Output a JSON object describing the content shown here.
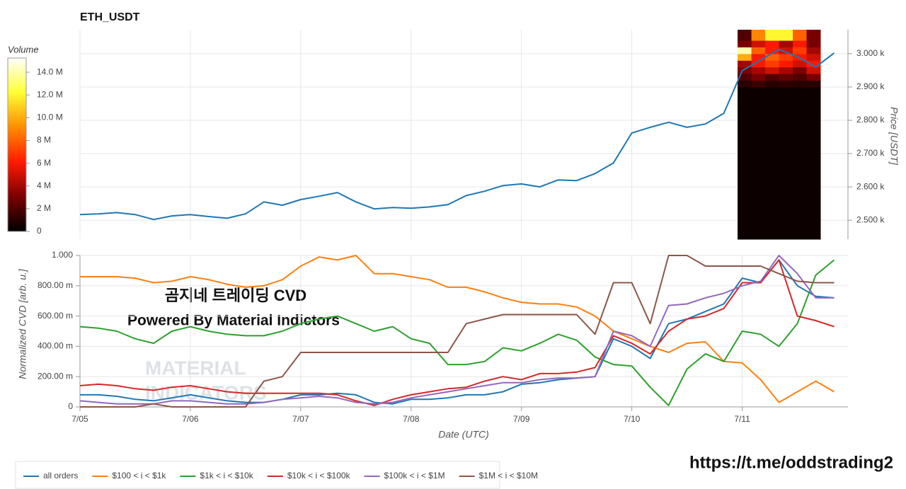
{
  "chart_data": [
    {
      "type": "line",
      "title": "ETH_USDT",
      "y_label": "Price [USDT]",
      "x": [
        0,
        4,
        8,
        12,
        16,
        20,
        24,
        28,
        32,
        36,
        40,
        44,
        48,
        52,
        56,
        60,
        64,
        68,
        72,
        76,
        80,
        84,
        88,
        92,
        96,
        100,
        104,
        108,
        112,
        116,
        120,
        124,
        128,
        132,
        136,
        140,
        144,
        148,
        152,
        156,
        160,
        164
      ],
      "series": [
        {
          "color": "#1f77b4",
          "values": [
            2517,
            2519,
            2523,
            2517,
            2502,
            2513,
            2517,
            2511,
            2506,
            2519,
            2555,
            2545,
            2562,
            2572,
            2583,
            2555,
            2534,
            2538,
            2536,
            2540,
            2547,
            2574,
            2587,
            2604,
            2609,
            2600,
            2621,
            2619,
            2640,
            2672,
            2762,
            2779,
            2794,
            2779,
            2789,
            2821,
            2949,
            2981,
            3013,
            2991,
            2960,
            3002
          ]
        }
      ],
      "xlim": [
        0,
        167
      ],
      "ylim": [
        2443,
        3072
      ],
      "yticks": [
        {
          "value": 2500,
          "label": "2.500 k"
        },
        {
          "value": 2600,
          "label": "2.600 k"
        },
        {
          "value": 2700,
          "label": "2.700 k"
        },
        {
          "value": 2800,
          "label": "2.800 k"
        },
        {
          "value": 2900,
          "label": "2.900 k"
        },
        {
          "value": 3000,
          "label": "3.000 k"
        }
      ],
      "grid": true,
      "heatmap": {
        "x_bins": [
          143,
          146,
          149,
          152,
          155,
          158,
          161
        ],
        "price_bins": [
          2443,
          2900,
          2920,
          2940,
          2960,
          2980,
          3000,
          3020,
          3040,
          3072
        ],
        "values": [
          [
            0.3,
            0.3,
            0.3,
            0.3,
            0.3,
            0.3
          ],
          [
            1,
            1.5,
            1,
            1.2,
            1,
            1
          ],
          [
            2,
            3,
            2,
            2.5,
            2,
            3
          ],
          [
            3,
            4,
            5,
            4,
            3,
            5
          ],
          [
            4,
            6,
            7,
            6,
            5,
            6
          ],
          [
            10,
            6,
            8,
            7,
            6,
            5
          ],
          [
            14,
            8,
            6,
            5,
            7,
            4
          ],
          [
            3,
            5,
            6,
            4,
            6,
            3
          ],
          [
            2,
            9,
            12,
            12,
            8,
            3
          ]
        ]
      },
      "colorbar": {
        "title": "Volume",
        "clim": [
          0,
          15.25
        ],
        "colors": [
          "#000000",
          "#7a0000",
          "#ff1a00",
          "#ff8c00",
          "#ffff33",
          "#ffffff"
        ],
        "ticks": [
          0,
          {
            "value": 2,
            "label": "2 M"
          },
          {
            "value": 4,
            "label": "4 M"
          },
          {
            "value": 6,
            "label": "6 M"
          },
          {
            "value": 8,
            "label": "8 M"
          },
          {
            "value": 10,
            "label": "10.0 M"
          },
          {
            "value": 12,
            "label": "12.0 M"
          },
          {
            "value": 14,
            "label": "14.0 M"
          }
        ]
      }
    },
    {
      "type": "line",
      "y_label": "Normalized CVD [arb. u.]",
      "x_label": "Date (UTC)",
      "x": [
        0,
        4,
        8,
        12,
        16,
        20,
        24,
        28,
        32,
        36,
        40,
        44,
        48,
        52,
        56,
        60,
        64,
        68,
        72,
        76,
        80,
        84,
        88,
        92,
        96,
        100,
        104,
        108,
        112,
        116,
        120,
        124,
        128,
        132,
        136,
        140,
        144,
        148,
        152,
        156,
        160,
        164
      ],
      "series": [
        {
          "name": "all orders",
          "color": "#1f77b4",
          "values": [
            0.08,
            0.08,
            0.07,
            0.05,
            0.04,
            0.06,
            0.08,
            0.06,
            0.04,
            0.03,
            0.03,
            0.05,
            0.08,
            0.08,
            0.09,
            0.08,
            0.03,
            0.02,
            0.05,
            0.05,
            0.06,
            0.08,
            0.08,
            0.1,
            0.15,
            0.16,
            0.18,
            0.19,
            0.2,
            0.45,
            0.4,
            0.32,
            0.55,
            0.58,
            0.63,
            0.68,
            0.85,
            0.82,
            0.97,
            0.8,
            0.73,
            0.72
          ]
        },
        {
          "name": "$100 < i < $1k",
          "color": "#ff7f0e",
          "values": [
            0.86,
            0.86,
            0.86,
            0.85,
            0.82,
            0.83,
            0.86,
            0.84,
            0.81,
            0.79,
            0.8,
            0.84,
            0.93,
            0.99,
            0.97,
            1.0,
            0.88,
            0.88,
            0.86,
            0.84,
            0.79,
            0.79,
            0.76,
            0.72,
            0.69,
            0.68,
            0.68,
            0.66,
            0.6,
            0.5,
            0.45,
            0.4,
            0.36,
            0.42,
            0.43,
            0.3,
            0.29,
            0.18,
            0.03,
            0.1,
            0.17,
            0.1
          ]
        },
        {
          "name": "$1k < i < $10k",
          "color": "#2ca02c",
          "values": [
            0.53,
            0.52,
            0.5,
            0.45,
            0.42,
            0.5,
            0.53,
            0.5,
            0.48,
            0.47,
            0.47,
            0.5,
            0.55,
            0.58,
            0.6,
            0.55,
            0.5,
            0.53,
            0.45,
            0.42,
            0.28,
            0.28,
            0.3,
            0.39,
            0.37,
            0.42,
            0.48,
            0.44,
            0.33,
            0.28,
            0.27,
            0.13,
            0.01,
            0.25,
            0.35,
            0.3,
            0.5,
            0.48,
            0.4,
            0.55,
            0.87,
            0.97
          ]
        },
        {
          "name": "$10k < i < $100k",
          "color": "#d62728",
          "values": [
            0.14,
            0.15,
            0.14,
            0.12,
            0.11,
            0.13,
            0.14,
            0.12,
            0.1,
            0.09,
            0.09,
            0.09,
            0.09,
            0.09,
            0.08,
            0.04,
            0.01,
            0.05,
            0.08,
            0.1,
            0.12,
            0.13,
            0.17,
            0.2,
            0.18,
            0.22,
            0.22,
            0.23,
            0.26,
            0.47,
            0.42,
            0.35,
            0.5,
            0.58,
            0.6,
            0.65,
            0.82,
            0.82,
            0.97,
            0.6,
            0.57,
            0.53
          ]
        },
        {
          "name": "$100k < i < $1M",
          "color": "#9467bd",
          "values": [
            0.04,
            0.03,
            0.02,
            0.02,
            0.02,
            0.04,
            0.04,
            0.03,
            0.02,
            0.02,
            0.03,
            0.05,
            0.06,
            0.07,
            0.06,
            0.03,
            0.02,
            0.03,
            0.06,
            0.08,
            0.1,
            0.12,
            0.14,
            0.16,
            0.16,
            0.18,
            0.19,
            0.19,
            0.2,
            0.5,
            0.47,
            0.4,
            0.67,
            0.68,
            0.72,
            0.75,
            0.8,
            0.83,
            1.0,
            0.88,
            0.72,
            0.72
          ]
        },
        {
          "name": "$1M < i < $10M",
          "color": "#8c564b",
          "values": [
            0,
            0,
            0,
            0,
            0.02,
            0,
            0,
            0,
            0,
            0,
            0.17,
            0.2,
            0.36,
            0.36,
            0.36,
            0.36,
            0.36,
            0.36,
            0.36,
            0.36,
            0.36,
            0.55,
            0.58,
            0.61,
            0.61,
            0.61,
            0.61,
            0.61,
            0.48,
            0.82,
            0.82,
            0.55,
            1,
            1,
            0.93,
            0.93,
            0.93,
            0.93,
            0.88,
            0.83,
            0.82,
            0.82
          ]
        }
      ],
      "xlim": [
        0,
        167
      ],
      "xticks": [
        {
          "value": 0,
          "label": "7/05"
        },
        {
          "value": 24,
          "label": "7/06"
        },
        {
          "value": 48,
          "label": "7/07"
        },
        {
          "value": 72,
          "label": "7/08"
        },
        {
          "value": 96,
          "label": "7/09"
        },
        {
          "value": 120,
          "label": "7/10"
        },
        {
          "value": 144,
          "label": "7/11"
        }
      ],
      "ylim": [
        0,
        1
      ],
      "yticks": [
        0,
        {
          "value": 0.2,
          "label": "200.00 m"
        },
        {
          "value": 0.4,
          "label": "400.00 m"
        },
        {
          "value": 0.6,
          "label": "600.00 m"
        },
        {
          "value": 0.8,
          "label": "800.00 m"
        },
        {
          "value": 1,
          "label": "1.000"
        }
      ],
      "grid": true,
      "legend": "bottom-left",
      "annotations": [
        "곰지네 트레이딩 CVD",
        "Powered By Material Indictors"
      ],
      "watermark": [
        "MATERIAL",
        "INDICATORS"
      ]
    }
  ],
  "link": "https://t.me/oddstrading2"
}
